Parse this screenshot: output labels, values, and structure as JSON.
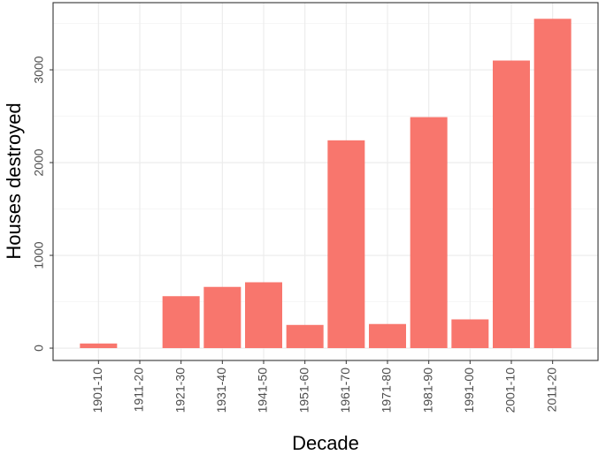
{
  "chart_data": {
    "type": "bar",
    "x_label": "Decade",
    "y_label": "Houses destroyed",
    "categories": [
      "1901-10",
      "1911-20",
      "1921-30",
      "1931-40",
      "1941-50",
      "1951-60",
      "1961-70",
      "1971-80",
      "1981-90",
      "1991-00",
      "2001-10",
      "2011-20"
    ],
    "values": [
      50,
      0,
      560,
      660,
      710,
      250,
      2240,
      260,
      2490,
      310,
      3100,
      3550
    ],
    "color": "#f8766d",
    "ylim": [
      -133,
      3724
    ],
    "yticks": [
      0,
      1000,
      2000,
      3000
    ],
    "grid": true
  }
}
